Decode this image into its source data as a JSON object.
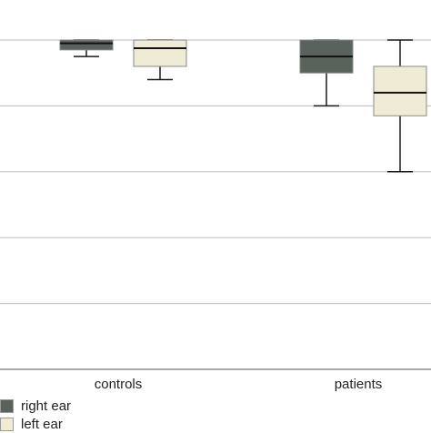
{
  "chart_data": {
    "type": "box",
    "title": "",
    "xlabel": "",
    "ylabel": "",
    "categories": [
      "controls",
      "patients"
    ],
    "grid": true,
    "legend_position": "bottom-left",
    "series": [
      {
        "name": "right ear",
        "color": "#5a625c",
        "boxes": [
          {
            "category": "controls",
            "whisker_low": 0.95,
            "q1": 0.97,
            "median": 0.99,
            "q3": 1.0,
            "whisker_high": 1.0
          },
          {
            "category": "patients",
            "whisker_low": 0.8,
            "q1": 0.9,
            "median": 0.95,
            "q3": 1.0,
            "whisker_high": 1.0
          }
        ]
      },
      {
        "name": "left ear",
        "color": "#efebd5",
        "boxes": [
          {
            "category": "controls",
            "whisker_low": 0.88,
            "q1": 0.92,
            "median": 0.975,
            "q3": 1.0,
            "whisker_high": 1.0
          },
          {
            "category": "patients",
            "whisker_low": 0.6,
            "q1": 0.77,
            "median": 0.84,
            "q3": 0.92,
            "whisker_high": 1.0
          }
        ]
      }
    ]
  }
}
